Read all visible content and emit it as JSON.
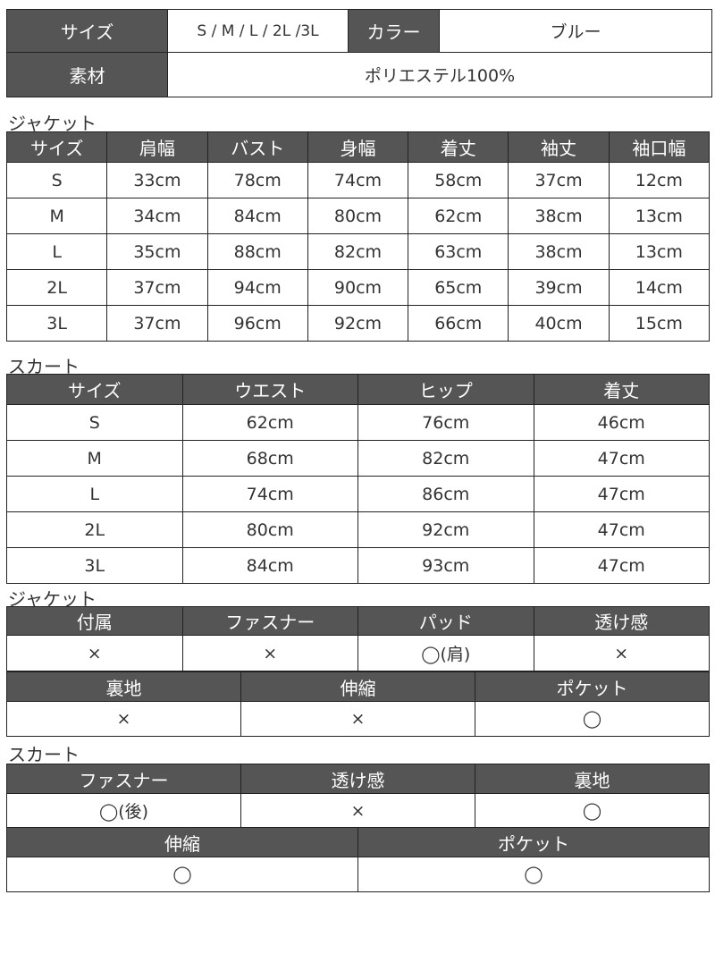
{
  "overview": {
    "size_label": "サイズ",
    "size_value": "S / M / L / 2L /3L",
    "color_label": "カラー",
    "color_value": "ブルー",
    "material_label": "素材",
    "material_value": "ポリエステル100%"
  },
  "jacket_size": {
    "title": "ジャケット",
    "headers": [
      "サイズ",
      "肩幅",
      "バスト",
      "身幅",
      "着丈",
      "袖丈",
      "袖口幅"
    ],
    "rows": [
      [
        "S",
        "33cm",
        "78cm",
        "74cm",
        "58cm",
        "37cm",
        "12cm"
      ],
      [
        "M",
        "34cm",
        "84cm",
        "80cm",
        "62cm",
        "38cm",
        "13cm"
      ],
      [
        "L",
        "35cm",
        "88cm",
        "82cm",
        "63cm",
        "38cm",
        "13cm"
      ],
      [
        "2L",
        "37cm",
        "94cm",
        "90cm",
        "65cm",
        "39cm",
        "14cm"
      ],
      [
        "3L",
        "37cm",
        "96cm",
        "92cm",
        "66cm",
        "40cm",
        "15cm"
      ]
    ]
  },
  "skirt_size": {
    "title": "スカート",
    "headers": [
      "サイズ",
      "ウエスト",
      "ヒップ",
      "着丈"
    ],
    "rows": [
      [
        "S",
        "62cm",
        "76cm",
        "46cm"
      ],
      [
        "M",
        "68cm",
        "82cm",
        "47cm"
      ],
      [
        "L",
        "74cm",
        "86cm",
        "47cm"
      ],
      [
        "2L",
        "80cm",
        "92cm",
        "47cm"
      ],
      [
        "3L",
        "84cm",
        "93cm",
        "47cm"
      ]
    ]
  },
  "jacket_features": {
    "title": "ジャケット",
    "row1": {
      "headers": [
        "付属",
        "ファスナー",
        "パッド",
        "透け感"
      ],
      "values": [
        "×",
        "×",
        "◯(肩)",
        "×"
      ]
    },
    "row2": {
      "headers": [
        "裏地",
        "伸縮",
        "ポケット"
      ],
      "values": [
        "×",
        "×",
        "◯"
      ]
    }
  },
  "skirt_features": {
    "title": "スカート",
    "row1": {
      "headers": [
        "ファスナー",
        "透け感",
        "裏地"
      ],
      "values": [
        "◯(後)",
        "×",
        "◯"
      ]
    },
    "row2": {
      "headers": [
        "伸縮",
        "ポケット"
      ],
      "values": [
        "◯",
        "◯"
      ]
    }
  }
}
